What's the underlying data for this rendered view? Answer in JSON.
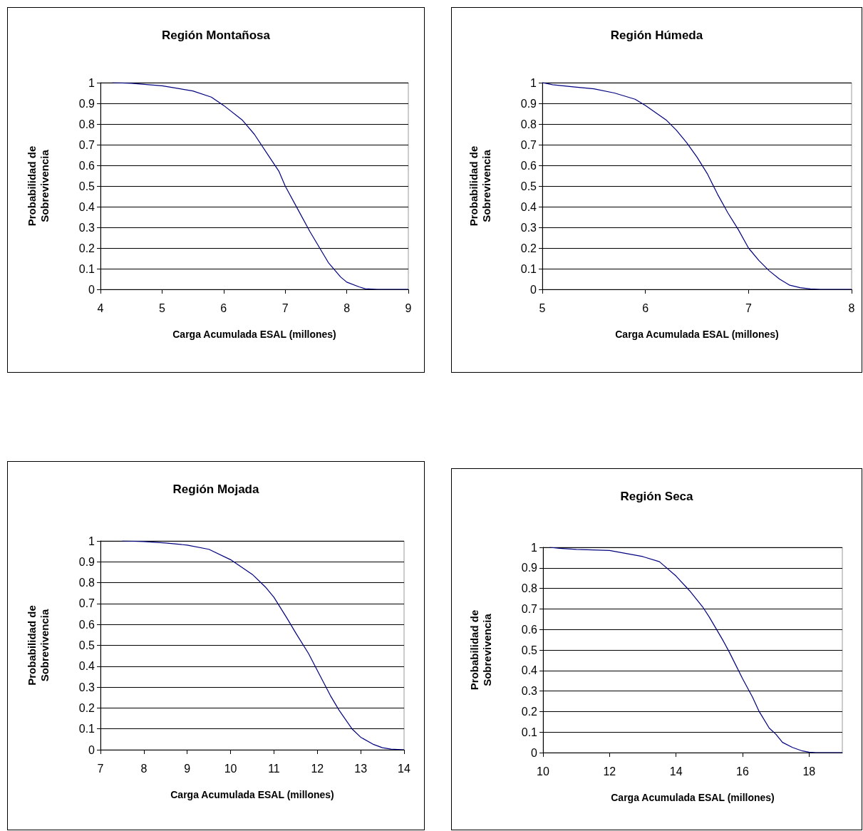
{
  "chart_data": [
    {
      "type": "line",
      "title": "Región Montañosa",
      "xlabel": "Carga Acumulada ESAL (millones)",
      "ylabel": "Probabilidad de\nSobrevivencia",
      "color": "#000080",
      "marker": "none",
      "line_style": "solid",
      "grid": "y",
      "x": [
        4.19,
        4.5,
        5,
        5.5,
        5.8,
        6,
        6.3,
        6.5,
        6.7,
        6.9,
        7,
        7.2,
        7.4,
        7.5,
        7.7,
        7.9,
        8,
        8.2,
        8.3,
        8.5,
        9
      ],
      "values": [
        1,
        0.997,
        0.985,
        0.96,
        0.93,
        0.89,
        0.82,
        0.75,
        0.66,
        0.57,
        0.5,
        0.39,
        0.28,
        0.23,
        0.13,
        0.06,
        0.035,
        0.012,
        0.003,
        0,
        0
      ],
      "xlim": [
        4,
        9
      ],
      "xticks": [
        4,
        5,
        6,
        7,
        8,
        9
      ],
      "ylim": [
        0,
        1
      ],
      "yticks": [
        0,
        0.1,
        0.2,
        0.3,
        0.4,
        0.5,
        0.6,
        0.7,
        0.8,
        0.9,
        1
      ]
    },
    {
      "type": "line",
      "title": "Región Húmeda",
      "xlabel": "Carga Acumulada ESAL (millones)",
      "ylabel": "Probabilidad de\nSobrevivencia",
      "color": "#000080",
      "marker": "none",
      "line_style": "solid",
      "grid": "y",
      "x": [
        5,
        5.1,
        5.3,
        5.5,
        5.7,
        5.9,
        6,
        6.2,
        6.3,
        6.4,
        6.5,
        6.6,
        6.7,
        6.8,
        6.9,
        7,
        7.1,
        7.2,
        7.3,
        7.4,
        7.5,
        7.6,
        7.7,
        8
      ],
      "values": [
        1,
        0.99,
        0.98,
        0.97,
        0.95,
        0.92,
        0.89,
        0.82,
        0.77,
        0.71,
        0.64,
        0.56,
        0.46,
        0.37,
        0.29,
        0.2,
        0.14,
        0.09,
        0.05,
        0.02,
        0.008,
        0.002,
        0,
        0
      ],
      "xlim": [
        5,
        8
      ],
      "xticks": [
        5,
        6,
        7,
        8
      ],
      "ylim": [
        0,
        1
      ],
      "yticks": [
        0,
        0.1,
        0.2,
        0.3,
        0.4,
        0.5,
        0.6,
        0.7,
        0.8,
        0.9,
        1
      ]
    },
    {
      "type": "line",
      "title": "Región Mojada",
      "xlabel": "Carga Acumulada ESAL (millones)",
      "ylabel": "Probabilidad de\nSobrevivencia",
      "color": "#000080",
      "marker": "none",
      "line_style": "solid",
      "grid": "y",
      "x": [
        7.5,
        8,
        8.5,
        9,
        9.5,
        10,
        10.5,
        10.8,
        11,
        11.3,
        11.5,
        11.8,
        12,
        12.3,
        12.5,
        12.8,
        13,
        13.3,
        13.5,
        13.7,
        14
      ],
      "values": [
        1,
        0.997,
        0.99,
        0.98,
        0.96,
        0.91,
        0.84,
        0.78,
        0.73,
        0.63,
        0.56,
        0.46,
        0.38,
        0.26,
        0.19,
        0.1,
        0.06,
        0.025,
        0.01,
        0.003,
        0
      ],
      "xlim": [
        7,
        14
      ],
      "xticks": [
        7,
        8,
        9,
        10,
        11,
        12,
        13,
        14
      ],
      "ylim": [
        0,
        1
      ],
      "yticks": [
        0,
        0.1,
        0.2,
        0.3,
        0.4,
        0.5,
        0.6,
        0.7,
        0.8,
        0.9,
        1
      ]
    },
    {
      "type": "line",
      "title": "Región Seca",
      "xlabel": "Carga Acumulada ESAL (millones)",
      "ylabel": "Probabilidad de\nSobrevivencia",
      "color": "#000080",
      "marker": "none",
      "line_style": "solid",
      "grid": "y",
      "x": [
        10.2,
        10.5,
        11,
        12,
        12.5,
        13,
        13.5,
        14,
        14.4,
        14.8,
        15,
        15.4,
        15.6,
        16,
        16.3,
        16.5,
        16.8,
        17,
        17.2,
        17.5,
        17.8,
        18,
        18.2,
        19
      ],
      "values": [
        1,
        0.995,
        0.99,
        0.985,
        0.97,
        0.955,
        0.93,
        0.86,
        0.79,
        0.71,
        0.66,
        0.55,
        0.49,
        0.36,
        0.27,
        0.2,
        0.12,
        0.09,
        0.05,
        0.025,
        0.008,
        0.002,
        0,
        0
      ],
      "xlim": [
        10,
        19
      ],
      "xticks": [
        10,
        12,
        14,
        16,
        18
      ],
      "ylim": [
        0,
        1
      ],
      "yticks": [
        0,
        0.1,
        0.2,
        0.3,
        0.4,
        0.5,
        0.6,
        0.7,
        0.8,
        0.9,
        1
      ]
    }
  ]
}
